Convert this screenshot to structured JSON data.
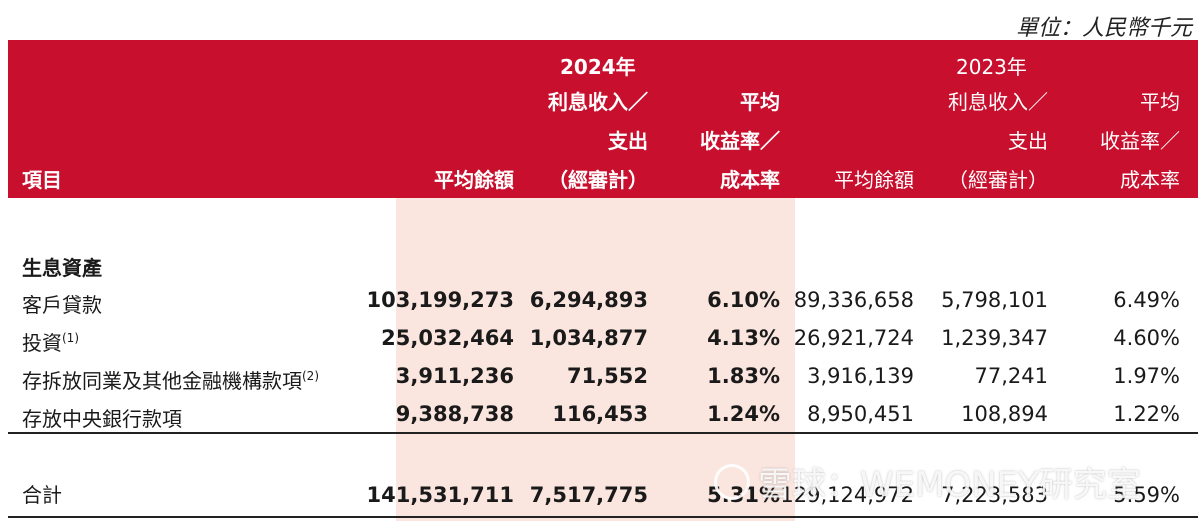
{
  "unit": "單位：人民幣千元",
  "header": {
    "item": "項目",
    "year_2024": "2024年",
    "year_2023": "2023年",
    "col_avg_balance": "平均餘額",
    "col_interest_l1": "利息收入／",
    "col_interest_l2": "支出",
    "col_interest_l3": "（經審計）",
    "col_yield_l1": "平均",
    "col_yield_l2": "收益率／",
    "col_yield_l3": "成本率"
  },
  "section": "生息資產",
  "rows": [
    {
      "label": "客戶貸款",
      "note": "",
      "bal_2024": "103,199,273",
      "int_2024": "6,294,893",
      "rate_2024": "6.10%",
      "bal_2023": "89,336,658",
      "int_2023": "5,798,101",
      "rate_2023": "6.49%"
    },
    {
      "label": "投資",
      "note": "(1)",
      "bal_2024": "25,032,464",
      "int_2024": "1,034,877",
      "rate_2024": "4.13%",
      "bal_2023": "26,921,724",
      "int_2023": "1,239,347",
      "rate_2023": "4.60%"
    },
    {
      "label": "存拆放同業及其他金融機構款項",
      "note": "(2)",
      "bal_2024": "3,911,236",
      "int_2024": "71,552",
      "rate_2024": "1.83%",
      "bal_2023": "3,916,139",
      "int_2023": "77,241",
      "rate_2023": "1.97%"
    },
    {
      "label": "存放中央銀行款項",
      "note": "",
      "bal_2024": "9,388,738",
      "int_2024": "116,453",
      "rate_2024": "1.24%",
      "bal_2023": "8,950,451",
      "int_2023": "108,894",
      "rate_2023": "1.22%"
    }
  ],
  "total": {
    "label": "合計",
    "bal_2024": "141,531,711",
    "int_2024": "7,517,775",
    "rate_2024": "5.31%",
    "bal_2023": "129,124,972",
    "int_2023": "7,223,583",
    "rate_2023": "5.59%"
  },
  "watermark": "雪球：WEMONEY研究室"
}
